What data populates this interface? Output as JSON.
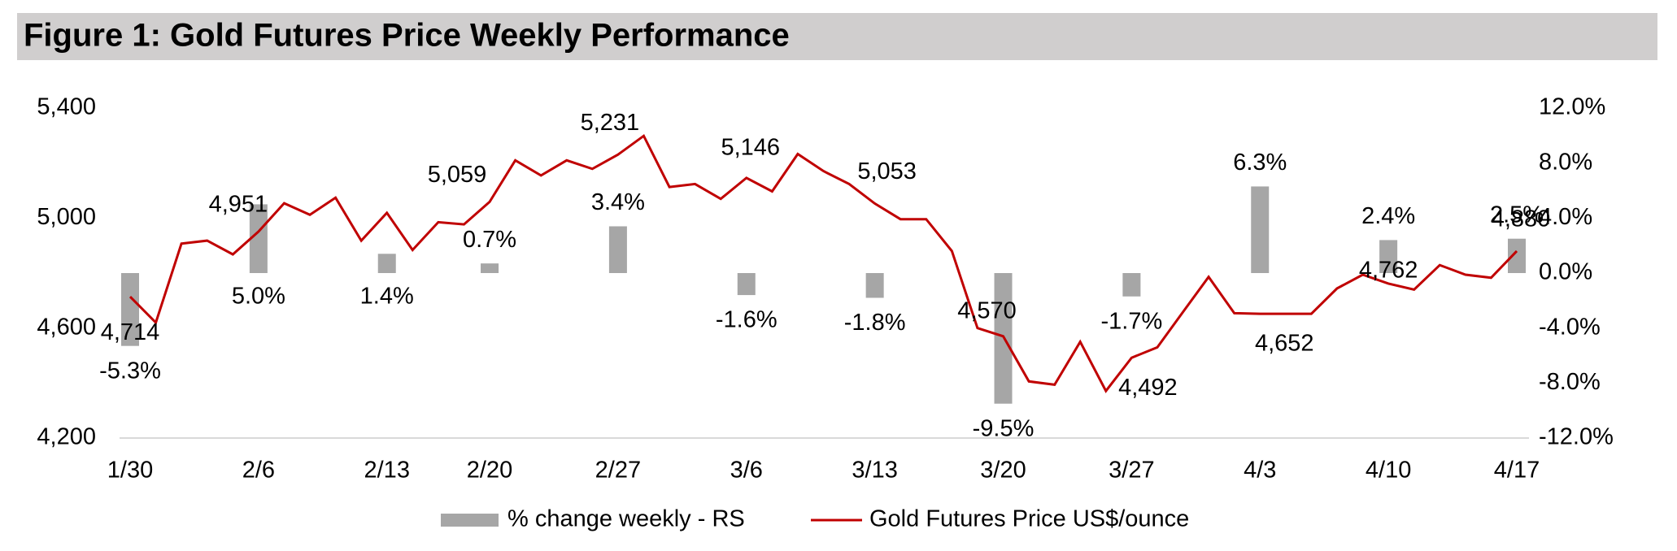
{
  "chart_data": {
    "type": "bar-line",
    "title": "Figure 1: Gold Futures Price Weekly Performance",
    "categories": [
      "1/30",
      null,
      null,
      null,
      null,
      "2/6",
      null,
      null,
      null,
      null,
      "2/13",
      null,
      null,
      null,
      "2/20",
      null,
      null,
      null,
      null,
      "2/27",
      null,
      null,
      null,
      null,
      "3/6",
      null,
      null,
      null,
      null,
      "3/13",
      null,
      null,
      null,
      null,
      "3/20",
      null,
      null,
      null,
      null,
      "3/27",
      null,
      null,
      null,
      null,
      "4/3",
      null,
      null,
      null,
      null,
      "4/10",
      null,
      null,
      null,
      null,
      "4/17"
    ],
    "series": [
      {
        "name": "% change weekly - RS",
        "type": "bar",
        "axis": "y2",
        "color": "#a6a6a6",
        "values": [
          -5.3,
          null,
          null,
          null,
          null,
          5.0,
          null,
          null,
          null,
          null,
          1.4,
          null,
          null,
          null,
          0.7,
          null,
          null,
          null,
          null,
          3.4,
          null,
          null,
          null,
          null,
          -1.6,
          null,
          null,
          null,
          null,
          -1.8,
          null,
          null,
          null,
          null,
          -9.5,
          null,
          null,
          null,
          null,
          -1.7,
          null,
          null,
          null,
          null,
          6.3,
          null,
          null,
          null,
          null,
          2.4,
          null,
          null,
          null,
          null,
          2.5
        ],
        "value_labels": [
          "-5.3%",
          null,
          null,
          null,
          null,
          "5.0%",
          null,
          null,
          null,
          null,
          "1.4%",
          null,
          null,
          null,
          "0.7%",
          null,
          null,
          null,
          null,
          "3.4%",
          null,
          null,
          null,
          null,
          "-1.6%",
          null,
          null,
          null,
          null,
          "-1.8%",
          null,
          null,
          null,
          null,
          "-9.5%",
          null,
          null,
          null,
          null,
          "-1.7%",
          null,
          null,
          null,
          null,
          "6.3%",
          null,
          null,
          null,
          null,
          "2.4%",
          null,
          null,
          null,
          null,
          "2.5%"
        ]
      },
      {
        "name": "Gold Futures Price US$/ounce",
        "type": "line",
        "axis": "y",
        "color": "#c00000",
        "values": [
          4714,
          4620,
          4907,
          4918,
          4868,
          4951,
          5054,
          5012,
          5074,
          4918,
          5019,
          4884,
          4985,
          4977,
          5059,
          5210,
          5155,
          5210,
          5179,
          5231,
          5299,
          5113,
          5124,
          5070,
          5146,
          5097,
          5233,
          5171,
          5124,
          5053,
          4996,
          4996,
          4880,
          4600,
          4570,
          4406,
          4394,
          4550,
          4371,
          4492,
          4530,
          4658,
          4786,
          4654,
          4652,
          4652,
          4652,
          4744,
          4794,
          4762,
          4740,
          4829,
          4794,
          4783,
          4880
        ],
        "value_labels": [
          "4,714",
          null,
          null,
          null,
          null,
          "4,951",
          null,
          null,
          null,
          null,
          null,
          null,
          null,
          null,
          "5,059",
          null,
          null,
          null,
          null,
          "5,231",
          null,
          null,
          null,
          null,
          "5,146",
          null,
          null,
          null,
          null,
          "5,053",
          null,
          null,
          null,
          null,
          "4,570",
          null,
          null,
          null,
          null,
          "4,492",
          null,
          null,
          null,
          null,
          "4,652",
          null,
          null,
          null,
          null,
          "4,762",
          null,
          null,
          null,
          null,
          "4,880"
        ]
      }
    ],
    "ylim": [
      4200,
      5400
    ],
    "yticks": [
      {
        "value": 4200,
        "label": "4,200"
      },
      {
        "value": 4600,
        "label": "4,600"
      },
      {
        "value": 5000,
        "label": "5,000"
      },
      {
        "value": 5400,
        "label": "5,400"
      }
    ],
    "y2lim": [
      -12,
      12
    ],
    "y2ticks": [
      {
        "value": -12,
        "label": "-12.0%"
      },
      {
        "value": -8,
        "label": "-8.0%"
      },
      {
        "value": -4,
        "label": "-4.0%"
      },
      {
        "value": 0,
        "label": "0.0%"
      },
      {
        "value": 4,
        "label": "4.0%"
      },
      {
        "value": 8,
        "label": "8.0%"
      },
      {
        "value": 12,
        "label": "12.0%"
      }
    ],
    "legend": "bottom"
  }
}
